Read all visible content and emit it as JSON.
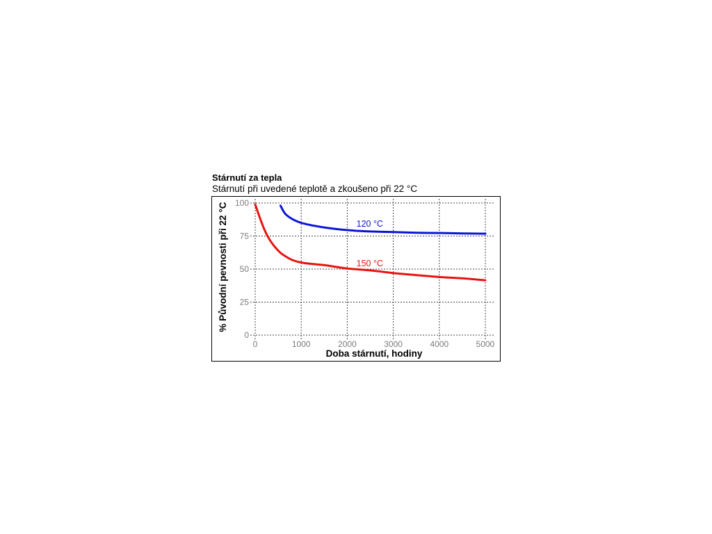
{
  "chart_data": {
    "type": "line",
    "title": "Stárnutí za tepla",
    "subtitle": "Stárnutí při uvedené teplotě a zkoušeno při 22 °C",
    "xlabel": "Doba stárnutí, hodiny",
    "ylabel": "% Původní pevnosti při 22 °C",
    "xlim": [
      0,
      5000
    ],
    "ylim": [
      0,
      100
    ],
    "xticks": [
      0,
      1000,
      2000,
      3000,
      4000,
      5000
    ],
    "yticks": [
      0,
      25,
      50,
      75,
      100
    ],
    "grid": true,
    "series": [
      {
        "name": "120 °C",
        "color": "#0a14d8",
        "x": [
          550,
          650,
          800,
          1000,
          1250,
          1500,
          2000,
          2500,
          3000,
          3500,
          4000,
          4500,
          5000
        ],
        "y": [
          98,
          92,
          88,
          85,
          83,
          81.5,
          79.5,
          78.5,
          78,
          77.5,
          77.3,
          77,
          76.8
        ]
      },
      {
        "name": "150 °C",
        "color": "#e8130f",
        "x": [
          0,
          100,
          200,
          300,
          400,
          500,
          600,
          800,
          1000,
          1200,
          1500,
          2000,
          2500,
          3000,
          3500,
          4000,
          4500,
          5000
        ],
        "y": [
          99,
          89,
          80,
          73,
          68,
          64,
          61,
          57,
          55,
          54,
          53,
          50.5,
          49,
          47,
          45.5,
          44,
          43,
          41.5
        ]
      }
    ]
  }
}
